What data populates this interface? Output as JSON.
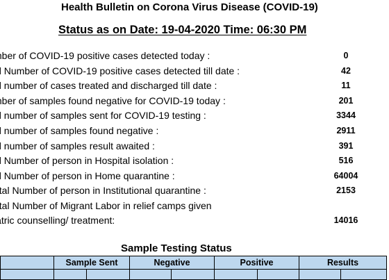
{
  "bulletin_title": "Health Bulletin on Corona Virus Disease (COVID-19)",
  "status_heading": "Status as on  Date: 19-04-2020 Time: 06:30 PM",
  "stats": [
    {
      "label": "mber of COVID-19 positive cases detected today :",
      "value": "0"
    },
    {
      "label": "al Number of COVID-19 positive cases detected till date :",
      "value": "42"
    },
    {
      "label": "al number of cases treated and discharged till date :",
      "value": "11"
    },
    {
      "label": "mber of samples found negative for COVID-19 today :",
      "value": "201"
    },
    {
      "label": "al number of samples sent for COVID-19 testing :",
      "value": "3344"
    },
    {
      "label": "al number of samples found negative :",
      "value": "2911"
    },
    {
      "label": "al number of samples result awaited :",
      "value": "391"
    },
    {
      "label": "al Number of person in Hospital isolation :",
      "value": "516"
    },
    {
      "label": "al Number of person in Home quarantine :",
      "value": "64004"
    },
    {
      "label": "otal Number of person in Institutional quarantine :",
      "value": "2153"
    },
    {
      "label": "otal Number of Migrant Labor in relief camps given\niatric counselling/ treatment:",
      "value": "14016"
    }
  ],
  "sample_testing": {
    "title": "Sample Testing Status",
    "headers": [
      "",
      "Sample Sent",
      "Negative",
      "Positive",
      "Results"
    ]
  }
}
